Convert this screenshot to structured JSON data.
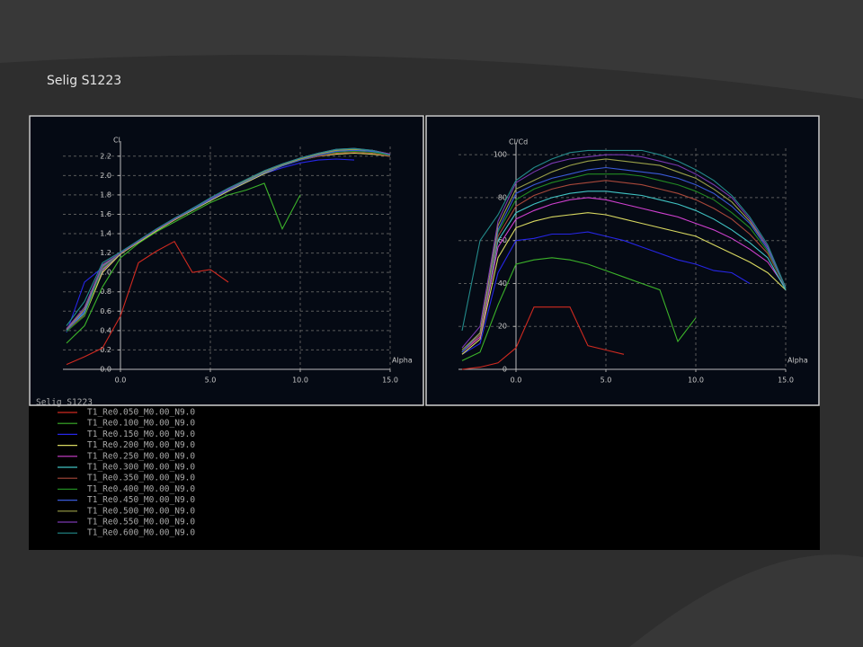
{
  "title": "Selig S1223",
  "legend": {
    "title": "Selig S1223",
    "entries": [
      {
        "name": "T1_Re0.050_M0.00_N9.0",
        "color": "#d02a20"
      },
      {
        "name": "T1_Re0.100_M0.00_N9.0",
        "color": "#3cb32a"
      },
      {
        "name": "T1_Re0.150_M0.00_N9.0",
        "color": "#2626e6"
      },
      {
        "name": "T1_Re0.200_M0.00_N9.0",
        "color": "#d8d860"
      },
      {
        "name": "T1_Re0.250_M0.00_N9.0",
        "color": "#d040d0"
      },
      {
        "name": "T1_Re0.300_M0.00_N9.0",
        "color": "#40c4c4"
      },
      {
        "name": "T1_Re0.350_M0.00_N9.0",
        "color": "#a8483a"
      },
      {
        "name": "T1_Re0.400_M0.00_N9.0",
        "color": "#228a22"
      },
      {
        "name": "T1_Re0.450_M0.00_N9.0",
        "color": "#3a5ad8"
      },
      {
        "name": "T1_Re0.500_M0.00_N9.0",
        "color": "#9aa048"
      },
      {
        "name": "T1_Re0.550_M0.00_N9.0",
        "color": "#7a38b0"
      },
      {
        "name": "T1_Re0.600_M0.00_N9.0",
        "color": "#238a8a"
      }
    ]
  },
  "chart_data": [
    {
      "type": "line",
      "y_label": "Cl",
      "x_label": "Alpha",
      "grid": true,
      "x": [
        -3,
        -2,
        -1,
        0,
        1,
        2,
        3,
        4,
        5,
        6,
        7,
        8,
        9,
        10,
        11,
        12,
        13,
        14,
        15
      ],
      "xlim": [
        -3.2,
        15
      ],
      "ylim": [
        0,
        2.3
      ],
      "xticks": [
        {
          "value": 0,
          "label": "0.0"
        },
        {
          "value": 5,
          "label": "5.0"
        },
        {
          "value": 10,
          "label": "10.0"
        },
        {
          "value": 15,
          "label": "15.0"
        }
      ],
      "yticks": [
        {
          "value": 0,
          "label": "0.0"
        },
        {
          "value": 0.2,
          "label": "0.2"
        },
        {
          "value": 0.4,
          "label": "0.4"
        },
        {
          "value": 0.6,
          "label": "0.6"
        },
        {
          "value": 0.8,
          "label": "0.8"
        },
        {
          "value": 1,
          "label": "1.0"
        },
        {
          "value": 1.2,
          "label": "1.2"
        },
        {
          "value": 1.4,
          "label": "1.4"
        },
        {
          "value": 1.6,
          "label": "1.6"
        },
        {
          "value": 1.8,
          "label": "1.8"
        },
        {
          "value": 2,
          "label": "2.0"
        },
        {
          "value": 2.2,
          "label": "2.2"
        }
      ],
      "series": [
        {
          "values": [
            0.05,
            0.13,
            0.22,
            0.55,
            1.1,
            1.22,
            1.32,
            1.0,
            1.03,
            0.9,
            null,
            null,
            null,
            null,
            null,
            null,
            null,
            null,
            null
          ]
        },
        {
          "values": [
            0.27,
            0.45,
            0.85,
            1.15,
            1.3,
            1.42,
            1.52,
            1.62,
            1.72,
            1.8,
            1.85,
            1.92,
            1.45,
            1.8,
            null,
            null,
            null,
            null,
            null
          ]
        },
        {
          "values": [
            0.38,
            0.9,
            1.05,
            1.2,
            1.32,
            1.44,
            1.55,
            1.65,
            1.75,
            1.84,
            1.93,
            2.02,
            2.08,
            2.13,
            2.16,
            2.17,
            2.16,
            null,
            null
          ]
        },
        {
          "values": [
            0.4,
            0.55,
            1.0,
            1.19,
            1.31,
            1.43,
            1.54,
            1.64,
            1.74,
            1.84,
            1.93,
            2.02,
            2.1,
            2.16,
            2.2,
            2.22,
            2.23,
            2.22,
            2.2
          ]
        },
        {
          "values": [
            0.42,
            0.6,
            1.02,
            1.2,
            1.32,
            1.44,
            1.55,
            1.65,
            1.76,
            1.86,
            1.95,
            2.04,
            2.11,
            2.17,
            2.22,
            2.26,
            2.27,
            2.26,
            2.22
          ]
        },
        {
          "values": [
            0.41,
            0.58,
            1.03,
            1.2,
            1.32,
            1.44,
            1.55,
            1.66,
            1.76,
            1.86,
            1.95,
            2.04,
            2.11,
            2.18,
            2.23,
            2.26,
            2.27,
            2.25,
            2.21
          ]
        },
        {
          "values": [
            0.4,
            0.56,
            1.04,
            1.2,
            1.32,
            1.44,
            1.55,
            1.65,
            1.76,
            1.85,
            1.94,
            2.03,
            2.1,
            2.16,
            2.2,
            2.23,
            2.24,
            2.23,
            2.2
          ]
        },
        {
          "values": [
            0.39,
            0.55,
            1.05,
            1.2,
            1.32,
            1.44,
            1.55,
            1.65,
            1.75,
            1.85,
            1.94,
            2.03,
            2.1,
            2.16,
            2.21,
            2.24,
            2.25,
            2.24,
            2.21
          ]
        },
        {
          "values": [
            0.4,
            0.6,
            1.06,
            1.2,
            1.32,
            1.44,
            1.55,
            1.65,
            1.75,
            1.85,
            1.94,
            2.03,
            2.1,
            2.16,
            2.21,
            2.25,
            2.26,
            2.25,
            2.22
          ]
        },
        {
          "values": [
            0.41,
            0.62,
            1.07,
            1.2,
            1.32,
            1.44,
            1.55,
            1.66,
            1.76,
            1.86,
            1.95,
            2.04,
            2.11,
            2.17,
            2.22,
            2.26,
            2.27,
            2.26,
            2.22
          ]
        },
        {
          "values": [
            0.42,
            0.64,
            1.08,
            1.2,
            1.32,
            1.44,
            1.55,
            1.66,
            1.76,
            1.86,
            1.96,
            2.05,
            2.12,
            2.18,
            2.23,
            2.27,
            2.28,
            2.26,
            2.22
          ]
        },
        {
          "values": [
            0.45,
            0.7,
            1.1,
            1.21,
            1.33,
            1.45,
            1.56,
            1.66,
            1.77,
            1.87,
            1.96,
            2.05,
            2.12,
            2.18,
            2.23,
            2.27,
            2.28,
            2.26,
            2.21
          ]
        }
      ]
    },
    {
      "type": "line",
      "y_label": "Cl/Cd",
      "x_label": "Alpha",
      "grid": true,
      "x": [
        -3,
        -2,
        -1,
        0,
        1,
        2,
        3,
        4,
        5,
        6,
        7,
        8,
        9,
        10,
        11,
        12,
        13,
        14,
        15
      ],
      "xlim": [
        -3.2,
        15
      ],
      "ylim": [
        0,
        103
      ],
      "xticks": [
        {
          "value": 0,
          "label": "0.0"
        },
        {
          "value": 5,
          "label": "5.0"
        },
        {
          "value": 10,
          "label": "10.0"
        },
        {
          "value": 15,
          "label": "15.0"
        }
      ],
      "yticks": [
        0,
        20,
        40,
        60,
        80,
        100
      ],
      "series": [
        {
          "values": [
            0,
            1,
            3,
            10,
            29,
            29,
            29,
            11,
            9,
            7,
            null,
            null,
            null,
            null,
            null,
            null,
            null,
            null,
            null
          ]
        },
        {
          "values": [
            4,
            8,
            30,
            49,
            51,
            52,
            51,
            49,
            46,
            43,
            40,
            37,
            13,
            24,
            null,
            null,
            null,
            null,
            null
          ]
        },
        {
          "values": [
            7,
            12,
            45,
            60,
            61,
            63,
            63,
            64,
            62,
            60,
            57,
            54,
            51,
            49,
            46,
            45,
            40,
            null,
            null
          ]
        },
        {
          "values": [
            7,
            14,
            52,
            66,
            69,
            71,
            72,
            73,
            72,
            70,
            68,
            66,
            64,
            62,
            58,
            54,
            50,
            45,
            37
          ]
        },
        {
          "values": [
            8,
            15,
            57,
            70,
            74,
            77,
            79,
            80,
            79,
            77,
            75,
            73,
            71,
            68,
            65,
            61,
            56,
            50,
            38
          ]
        },
        {
          "values": [
            8,
            16,
            60,
            73,
            77,
            80,
            82,
            83,
            83,
            82,
            81,
            79,
            77,
            74,
            70,
            65,
            59,
            52,
            37
          ]
        },
        {
          "values": [
            8,
            16,
            62,
            76,
            81,
            84,
            86,
            87,
            88,
            87,
            86,
            84,
            82,
            79,
            75,
            70,
            63,
            54,
            38
          ]
        },
        {
          "values": [
            8,
            17,
            64,
            79,
            84,
            87,
            89,
            91,
            91,
            91,
            90,
            88,
            86,
            83,
            79,
            73,
            66,
            55,
            38
          ]
        },
        {
          "values": [
            8,
            17,
            65,
            82,
            86,
            89,
            91,
            93,
            94,
            93,
            92,
            91,
            89,
            86,
            82,
            76,
            68,
            56,
            38
          ]
        },
        {
          "values": [
            9,
            17,
            67,
            84,
            88,
            92,
            95,
            97,
            98,
            97,
            96,
            95,
            92,
            89,
            84,
            78,
            69,
            57,
            38
          ]
        },
        {
          "values": [
            10,
            20,
            69,
            87,
            92,
            96,
            98,
            99,
            100,
            100,
            99,
            97,
            95,
            91,
            86,
            80,
            70,
            57,
            38
          ]
        },
        {
          "values": [
            18,
            60,
            72,
            88,
            94,
            98,
            101,
            102,
            102,
            102,
            102,
            100,
            97,
            93,
            88,
            81,
            71,
            58,
            38
          ]
        }
      ]
    }
  ]
}
